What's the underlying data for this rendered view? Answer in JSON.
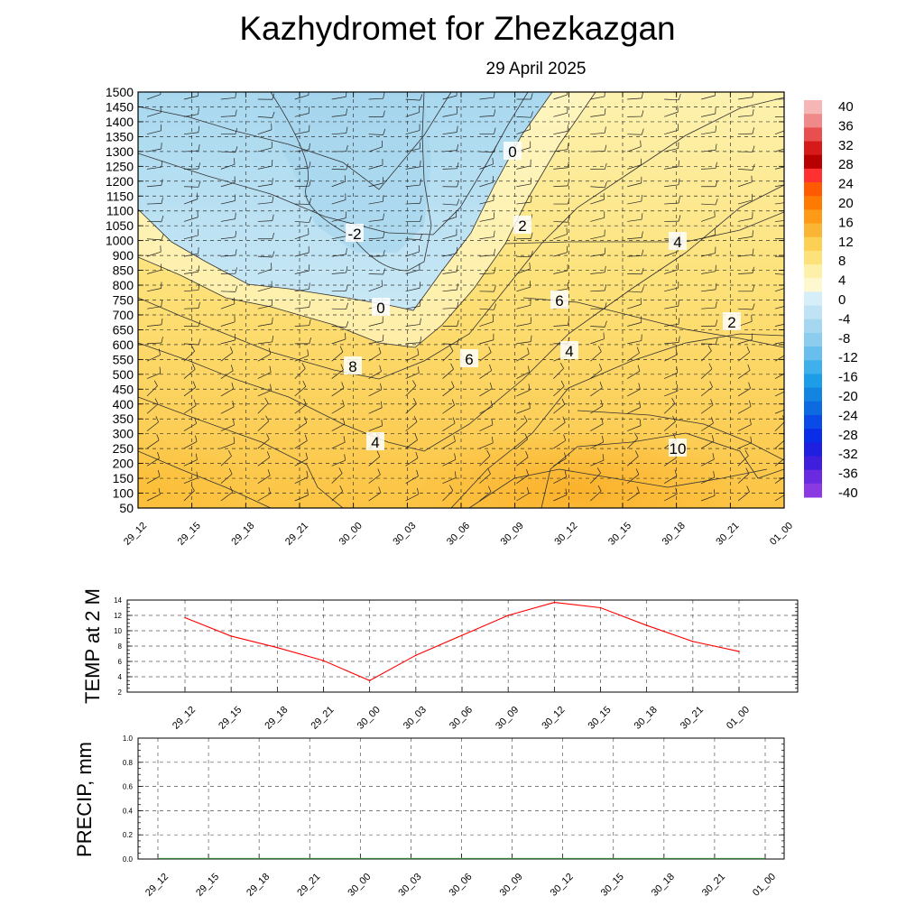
{
  "header": {
    "title": "Kazhydromet  for Zhezkazgan",
    "date": "29 April 2025"
  },
  "colors": {
    "cold_light": "#c6e6f4",
    "cold_mid": "#a9d8ef",
    "zero_pale": "#fdf6bf",
    "warm_light": "#fde58a",
    "warm_mid": "#fdd25a",
    "warm_deep": "#fbb52a",
    "line_red": "#ff0000",
    "precip_line": "#2e7d32"
  },
  "chart_data": [
    {
      "type": "heatmap",
      "name": "cross-section",
      "title": "Kazhydromet  for Zhezkazgan",
      "subtitle": "29 April 2025",
      "x_ticks": [
        "29_12",
        "29_15",
        "29_18",
        "29_21",
        "30_00",
        "30_03",
        "30_06",
        "30_09",
        "30_12",
        "30_15",
        "30_18",
        "30_21",
        "01_00"
      ],
      "y_ticks": [
        1500,
        1450,
        1400,
        1350,
        1300,
        1250,
        1200,
        1150,
        1100,
        1050,
        1000,
        900,
        850,
        800,
        750,
        700,
        650,
        600,
        550,
        500,
        450,
        400,
        350,
        300,
        250,
        200,
        150,
        100,
        50
      ],
      "contour_labels": [
        "0",
        "-2",
        "2",
        "4",
        "0",
        "6",
        "2",
        "8",
        "4",
        "6",
        "4",
        "10"
      ],
      "colorbar_ticks": [
        "40",
        "36",
        "32",
        "28",
        "24",
        "20",
        "16",
        "12",
        "8",
        "4",
        "0",
        "-4",
        "-8",
        "-12",
        "-16",
        "-20",
        "-24",
        "-28",
        "-32",
        "-36",
        "-40"
      ],
      "zero_isotherm": [
        {
          "time": "29_12",
          "level": 1050
        },
        {
          "time": "29_18",
          "level": 800
        },
        {
          "time": "30_00",
          "level": 750
        },
        {
          "time": "30_03",
          "level": 700
        },
        {
          "time": "30_06",
          "level": 950
        },
        {
          "time": "30_09",
          "level": 1250
        },
        {
          "time": "30_12",
          "level": 1500
        }
      ]
    },
    {
      "type": "line",
      "name": "temp",
      "ylabel": "TEMP at 2 M",
      "x": [
        "29_12",
        "29_15",
        "29_18",
        "29_21",
        "30_00",
        "30_03",
        "30_06",
        "30_09",
        "30_12",
        "30_15",
        "30_18",
        "30_21",
        "01_00"
      ],
      "values": [
        11.7,
        9.3,
        7.8,
        6.1,
        3.5,
        6.8,
        9.4,
        12.0,
        13.7,
        13.0,
        10.7,
        8.6,
        7.3
      ],
      "ylim": [
        2,
        14
      ],
      "y_ticks": [
        "14",
        "12",
        "10",
        "8",
        "6",
        "4",
        "2"
      ],
      "grid": true
    },
    {
      "type": "line",
      "name": "precip",
      "ylabel": "PRECIP, mm",
      "x": [
        "29_12",
        "29_15",
        "29_18",
        "29_21",
        "30_00",
        "30_03",
        "30_06",
        "30_09",
        "30_12",
        "30_15",
        "30_18",
        "30_21",
        "01_00"
      ],
      "values": [
        0,
        0,
        0,
        0,
        0,
        0,
        0,
        0,
        0,
        0,
        0,
        0,
        0
      ],
      "ylim": [
        0,
        1
      ],
      "y_ticks": [
        "1.0",
        "0.8",
        "0.6",
        "0.4",
        "0.2",
        "0.0"
      ],
      "grid": true
    }
  ]
}
